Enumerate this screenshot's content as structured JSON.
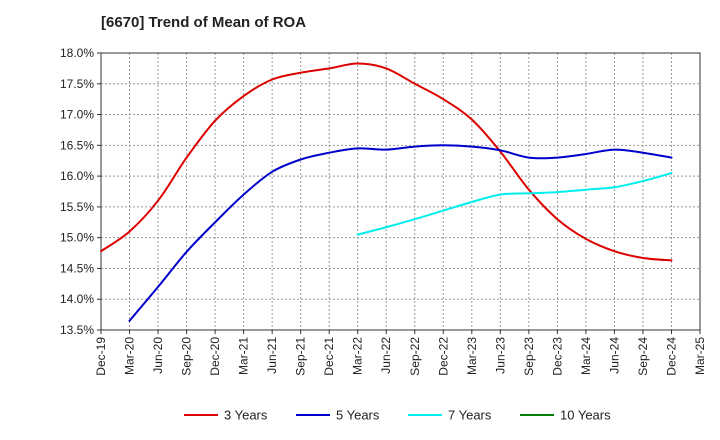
{
  "chart_data": {
    "type": "line",
    "title": "[6670]  Trend of Mean of ROA",
    "xlabel": "",
    "ylabel": "",
    "categories": [
      "Dec-19",
      "Mar-20",
      "Jun-20",
      "Sep-20",
      "Dec-20",
      "Mar-21",
      "Jun-21",
      "Sep-21",
      "Dec-21",
      "Mar-22",
      "Jun-22",
      "Sep-22",
      "Dec-22",
      "Mar-23",
      "Jun-23",
      "Sep-23",
      "Dec-23",
      "Mar-24",
      "Jun-24",
      "Sep-24",
      "Dec-24",
      "Mar-25"
    ],
    "ylim": [
      13.5,
      18.0
    ],
    "yticks": [
      13.5,
      14.0,
      14.5,
      15.0,
      15.5,
      16.0,
      16.5,
      17.0,
      17.5,
      18.0
    ],
    "ytick_labels": [
      "13.5%",
      "14.0%",
      "14.5%",
      "15.0%",
      "15.5%",
      "16.0%",
      "16.5%",
      "17.0%",
      "17.5%",
      "18.0%"
    ],
    "grid": true,
    "legend_position": "bottom",
    "series": [
      {
        "name": "3 Years",
        "color": "#dd0000",
        "values": [
          14.78,
          15.1,
          15.6,
          16.3,
          16.9,
          17.3,
          17.57,
          17.68,
          17.75,
          17.83,
          17.75,
          17.5,
          17.25,
          16.92,
          16.4,
          15.78,
          15.3,
          14.98,
          14.78,
          14.67,
          14.63,
          null
        ]
      },
      {
        "name": "5 Years",
        "color": "#0000cc",
        "values": [
          null,
          13.65,
          14.2,
          14.77,
          15.25,
          15.7,
          16.07,
          16.27,
          16.38,
          16.45,
          16.43,
          16.48,
          16.5,
          16.48,
          16.42,
          16.3,
          16.3,
          16.36,
          16.43,
          16.38,
          16.3,
          null
        ]
      },
      {
        "name": "7 Years",
        "color": "#00eeee",
        "values": [
          null,
          null,
          null,
          null,
          null,
          null,
          null,
          null,
          null,
          15.05,
          15.17,
          15.3,
          15.44,
          15.58,
          15.7,
          15.72,
          15.74,
          15.78,
          15.82,
          15.92,
          16.05,
          null
        ]
      },
      {
        "name": "10 Years",
        "color": "#008000",
        "values": [
          null,
          null,
          null,
          null,
          null,
          null,
          null,
          null,
          null,
          null,
          null,
          null,
          null,
          null,
          null,
          null,
          null,
          null,
          null,
          null,
          null,
          null
        ]
      }
    ]
  }
}
